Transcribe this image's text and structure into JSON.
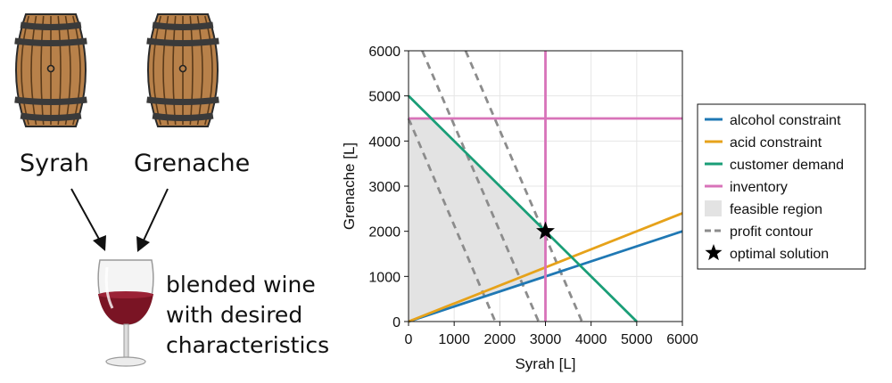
{
  "illustration": {
    "barrel_left_label": "Syrah",
    "barrel_right_label": "Grenache",
    "blend_lines": [
      "blended wine",
      "with desired",
      "characteristics"
    ],
    "barrel_color": "#b8814a",
    "hoop_color": "#3a3a3a",
    "wine_color": "#7a1424"
  },
  "chart_data": {
    "type": "line",
    "xlabel": "Syrah [L]",
    "ylabel": "Grenache [L]",
    "xlim": [
      0,
      6000
    ],
    "ylim": [
      0,
      6000
    ],
    "xticks": [
      "0",
      "1000",
      "2000",
      "3000",
      "4000",
      "5000",
      "6000"
    ],
    "yticks": [
      "0",
      "1000",
      "2000",
      "3000",
      "4000",
      "5000",
      "6000"
    ],
    "grid": true,
    "legend_position": "right",
    "series": [
      {
        "name": "alcohol constraint",
        "color": "#1f78b4",
        "style": "solid",
        "points": [
          [
            0,
            0
          ],
          [
            6000,
            2000
          ]
        ]
      },
      {
        "name": "acid constraint",
        "color": "#e6a21a",
        "style": "solid",
        "points": [
          [
            0,
            0
          ],
          [
            6000,
            2400
          ]
        ]
      },
      {
        "name": "customer demand",
        "color": "#1a9e77",
        "style": "solid",
        "points": [
          [
            0,
            5000
          ],
          [
            5000,
            0
          ]
        ]
      },
      {
        "name": "inventory",
        "color": "#d873b9",
        "style": "solid",
        "points": [
          [
            0,
            4500
          ],
          [
            6000,
            4500
          ]
        ]
      },
      {
        "name": "",
        "color": "#d873b9",
        "style": "solid",
        "points": [
          [
            3000,
            0
          ],
          [
            3000,
            6000
          ]
        ]
      }
    ],
    "feasible_region": {
      "name": "feasible region",
      "color": "#e3e3e3",
      "points": [
        [
          0,
          0
        ],
        [
          3000,
          1000
        ],
        [
          3000,
          2000
        ],
        [
          500,
          4500
        ],
        [
          0,
          4500
        ]
      ]
    },
    "profit_contours": {
      "name": "profit contour",
      "color": "#8c8c8c",
      "style": "dashed",
      "lines": [
        [
          [
            0,
            4500
          ],
          [
            1900,
            0
          ]
        ],
        [
          [
            300,
            6000
          ],
          [
            2850,
            0
          ]
        ],
        [
          [
            1250,
            6000
          ],
          [
            3800,
            0
          ]
        ]
      ]
    },
    "optimal_solution": {
      "name": "optimal solution",
      "x": 3000,
      "y": 2000,
      "color": "#000000"
    }
  }
}
